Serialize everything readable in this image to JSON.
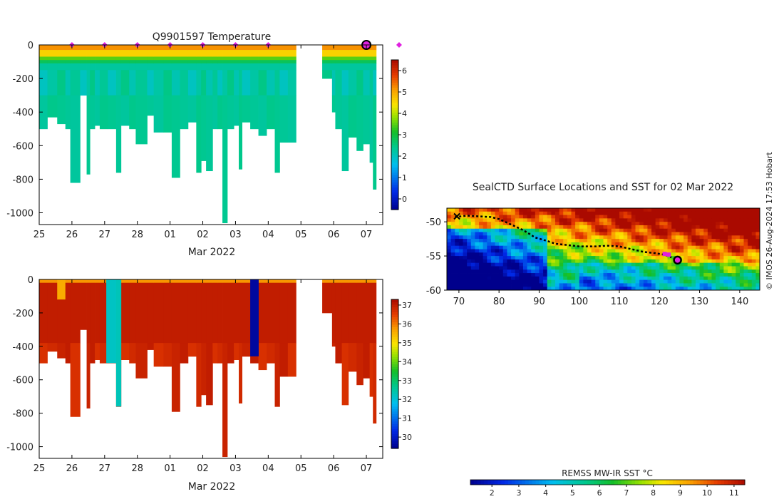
{
  "copyright": "© IMOS 26-Aug-2024 17:53 Hobart",
  "chart_data": [
    {
      "type": "heatmap",
      "title": "Q9901597  Temperature",
      "xlabel": "Mar 2022",
      "x_ticks": [
        "25",
        "26",
        "27",
        "28",
        "01",
        "02",
        "03",
        "04",
        "05",
        "06",
        "07"
      ],
      "y_ticks": [
        "0",
        "-200",
        "-400",
        "-600",
        "-800",
        "-1000"
      ],
      "ylim": [
        -1070,
        0
      ],
      "colorbar": {
        "ticks": [
          "0",
          "1",
          "2",
          "3",
          "4",
          "5",
          "6"
        ],
        "min": -0.5,
        "max": 6.5
      },
      "surface_markers_days": [
        1,
        2,
        3,
        4,
        5,
        6,
        7,
        11
      ],
      "current_position_day": 10,
      "profiles": [
        {
          "start": 0.0,
          "end": 0.25,
          "depth": 500
        },
        {
          "start": 0.25,
          "end": 0.55,
          "depth": 430
        },
        {
          "start": 0.55,
          "end": 0.8,
          "depth": 470
        },
        {
          "start": 0.8,
          "end": 0.95,
          "depth": 500
        },
        {
          "start": 0.95,
          "end": 1.25,
          "depth": 820
        },
        {
          "start": 1.25,
          "end": 1.45,
          "depth": 300
        },
        {
          "start": 1.45,
          "end": 1.55,
          "depth": 770
        },
        {
          "start": 1.55,
          "end": 1.7,
          "depth": 500
        },
        {
          "start": 1.7,
          "end": 1.85,
          "depth": 480
        },
        {
          "start": 1.85,
          "end": 2.1,
          "depth": 500
        },
        {
          "start": 2.1,
          "end": 2.35,
          "depth": 500
        },
        {
          "start": 2.35,
          "end": 2.5,
          "depth": 760
        },
        {
          "start": 2.5,
          "end": 2.75,
          "depth": 480
        },
        {
          "start": 2.75,
          "end": 2.95,
          "depth": 500
        },
        {
          "start": 2.95,
          "end": 3.3,
          "depth": 590
        },
        {
          "start": 3.3,
          "end": 3.5,
          "depth": 420
        },
        {
          "start": 3.5,
          "end": 3.8,
          "depth": 520
        },
        {
          "start": 3.8,
          "end": 4.05,
          "depth": 520
        },
        {
          "start": 4.05,
          "end": 4.3,
          "depth": 790
        },
        {
          "start": 4.3,
          "end": 4.55,
          "depth": 500
        },
        {
          "start": 4.55,
          "end": 4.8,
          "depth": 460
        },
        {
          "start": 4.8,
          "end": 4.95,
          "depth": 760
        },
        {
          "start": 4.95,
          "end": 5.1,
          "depth": 690
        },
        {
          "start": 5.1,
          "end": 5.3,
          "depth": 750
        },
        {
          "start": 5.3,
          "end": 5.45,
          "depth": 500
        },
        {
          "start": 5.45,
          "end": 5.6,
          "depth": 500
        },
        {
          "start": 5.6,
          "end": 5.75,
          "depth": 1060
        },
        {
          "start": 5.75,
          "end": 5.95,
          "depth": 500
        },
        {
          "start": 5.95,
          "end": 6.1,
          "depth": 480
        },
        {
          "start": 6.1,
          "end": 6.2,
          "depth": 740
        },
        {
          "start": 6.2,
          "end": 6.45,
          "depth": 460
        },
        {
          "start": 6.45,
          "end": 6.7,
          "depth": 500
        },
        {
          "start": 6.7,
          "end": 6.95,
          "depth": 540
        },
        {
          "start": 6.95,
          "end": 7.2,
          "depth": 500
        },
        {
          "start": 7.2,
          "end": 7.35,
          "depth": 760
        },
        {
          "start": 7.35,
          "end": 7.6,
          "depth": 580
        },
        {
          "start": 7.6,
          "end": 7.85,
          "depth": 580
        },
        {
          "start": 8.65,
          "end": 8.95,
          "depth": 200
        },
        {
          "start": 8.95,
          "end": 9.05,
          "depth": 400
        },
        {
          "start": 9.05,
          "end": 9.25,
          "depth": 500
        },
        {
          "start": 9.25,
          "end": 9.45,
          "depth": 750
        },
        {
          "start": 9.45,
          "end": 9.7,
          "depth": 550
        },
        {
          "start": 9.7,
          "end": 9.9,
          "depth": 630
        },
        {
          "start": 9.9,
          "end": 10.1,
          "depth": 590
        },
        {
          "start": 10.1,
          "end": 10.2,
          "depth": 700
        },
        {
          "start": 10.2,
          "end": 10.3,
          "depth": 860
        }
      ],
      "layers": [
        {
          "from": 0,
          "to": 30,
          "value": 5.2
        },
        {
          "from": 30,
          "to": 70,
          "value": 4.6
        },
        {
          "from": 70,
          "to": 90,
          "value": 3.5
        },
        {
          "from": 90,
          "to": 110,
          "value": 2.8
        },
        {
          "from": 110,
          "to": 150,
          "value": 2.3
        },
        {
          "from": 150,
          "to": 300,
          "value": 2.0
        },
        {
          "from": 300,
          "to": 2000,
          "value": 2.2
        }
      ]
    },
    {
      "type": "heatmap",
      "title": "",
      "xlabel": "Mar 2022",
      "x_ticks": [
        "25",
        "26",
        "27",
        "28",
        "01",
        "02",
        "03",
        "04",
        "05",
        "06",
        "07"
      ],
      "y_ticks": [
        "0",
        "-200",
        "-400",
        "-600",
        "-800",
        "-1000"
      ],
      "ylim": [
        -1070,
        0
      ],
      "colorbar": {
        "ticks": [
          "30",
          "31",
          "32",
          "33",
          "34",
          "35",
          "36",
          "37"
        ],
        "min": 29.4,
        "max": 37.3
      },
      "fresh_profiles": [
        {
          "start": 2.05,
          "end": 2.45,
          "depth": 500,
          "value": 32.2
        },
        {
          "start": 2.35,
          "end": 2.5,
          "depth": 760,
          "value": 32.3
        },
        {
          "start": 6.45,
          "end": 6.7,
          "depth": 460,
          "value": 29.6
        }
      ],
      "salt_value": 37.0,
      "near_surface_value": 35.8
    },
    {
      "type": "heatmap",
      "title": "SealCTD Surface Locations and SST for 02 Mar 2022",
      "x_ticks": [
        "70",
        "80",
        "90",
        "100",
        "110",
        "120",
        "130",
        "140"
      ],
      "y_ticks": [
        "-50",
        "-55",
        "-60"
      ],
      "xlim": [
        67,
        145
      ],
      "ylim": [
        -60,
        -48
      ],
      "track": [
        [
          69,
          -49.3
        ],
        [
          72,
          -49.1
        ],
        [
          75,
          -49.2
        ],
        [
          78,
          -49.3
        ],
        [
          80,
          -49.6
        ],
        [
          83,
          -50.4
        ],
        [
          86,
          -51.2
        ],
        [
          89,
          -52.3
        ],
        [
          92,
          -52.8
        ],
        [
          94,
          -53.2
        ],
        [
          97,
          -53.4
        ],
        [
          100,
          -53.6
        ],
        [
          104,
          -53.6
        ],
        [
          107,
          -53.5
        ],
        [
          110,
          -53.6
        ],
        [
          113,
          -54.0
        ],
        [
          116,
          -54.4
        ],
        [
          119,
          -54.6
        ],
        [
          121,
          -54.8
        ],
        [
          123,
          -55.2
        ]
      ],
      "recent_surfacings": [
        [
          121.3,
          -54.7
        ],
        [
          122.3,
          -54.8
        ]
      ],
      "current_position": [
        124.5,
        -55.6
      ],
      "release_position": [
        69.5,
        -49.2
      ],
      "colorbar": {
        "label": "REMSS MW-IR SST °C",
        "ticks": [
          "2",
          "3",
          "4",
          "5",
          "6",
          "7",
          "8",
          "9",
          "10",
          "11"
        ],
        "min": 1.2,
        "max": 11.4
      }
    }
  ]
}
